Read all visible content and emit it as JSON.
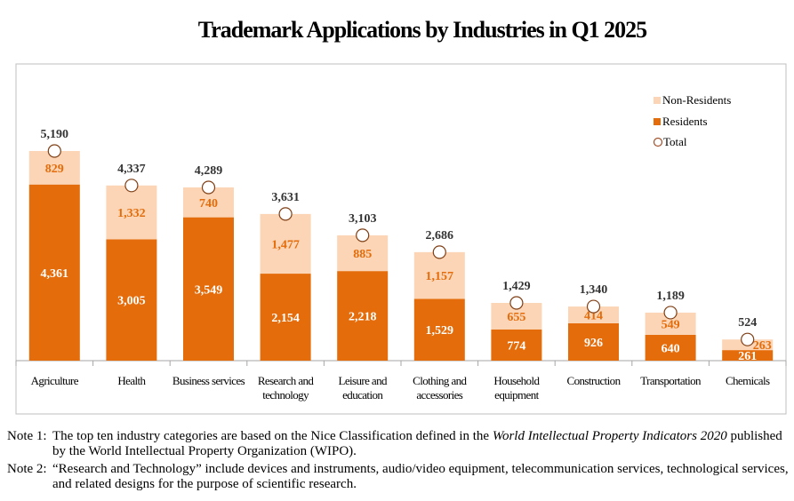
{
  "chart_data": {
    "type": "bar",
    "stacked": true,
    "title": "Trademark Applications by Industries in Q1 2025",
    "categories": [
      [
        "Agriculture"
      ],
      [
        "Health"
      ],
      [
        "Business services"
      ],
      [
        "Research and",
        "technology"
      ],
      [
        "Leisure and",
        "education"
      ],
      [
        "Clothing and",
        "accessories"
      ],
      [
        "Household",
        "equipment"
      ],
      [
        "Construction"
      ],
      [
        "Transportation"
      ],
      [
        "Chemicals"
      ]
    ],
    "series": [
      {
        "name": "Residents",
        "color": "#e46c0a",
        "values": [
          4361,
          3005,
          3549,
          2154,
          2218,
          1529,
          774,
          926,
          640,
          261
        ],
        "labels": [
          "4,361",
          "3,005",
          "3,549",
          "2,154",
          "2,218",
          "1,529",
          "774",
          "926",
          "640",
          "261"
        ]
      },
      {
        "name": "Non-Residents",
        "color": "#fbd5b5",
        "values": [
          829,
          1332,
          740,
          1477,
          885,
          1157,
          655,
          414,
          549,
          263
        ],
        "labels": [
          "829",
          "1,332",
          "740",
          "1,477",
          "885",
          "1,157",
          "655",
          "414",
          "549",
          "263"
        ]
      }
    ],
    "totals": {
      "name": "Total",
      "values": [
        5190,
        4337,
        4289,
        3631,
        3103,
        2686,
        1429,
        1340,
        1189,
        524
      ],
      "labels": [
        "5,190",
        "4,337",
        "4,289",
        "3,631",
        "3,103",
        "2,686",
        "1,429",
        "1,340",
        "1,189",
        "524"
      ]
    },
    "ylim": [
      0,
      6200
    ],
    "legend_position": "top-right",
    "legend": [
      "Non-Residents",
      "Residents",
      "Total"
    ]
  },
  "notes": [
    {
      "label": "Note 1:",
      "pre": "The top ten industry categories are based on the Nice Classification defined in the ",
      "italic": "World Intellectual Property Indicators 2020",
      "post": " published by the World Intellectual Property Organization (WIPO)."
    },
    {
      "label": "Note 2:",
      "pre": "“Research and Technology” include devices and instruments, audio/video equipment, telecommunication services, technological services, and related designs for the purpose of scientific research.",
      "italic": "",
      "post": ""
    }
  ]
}
